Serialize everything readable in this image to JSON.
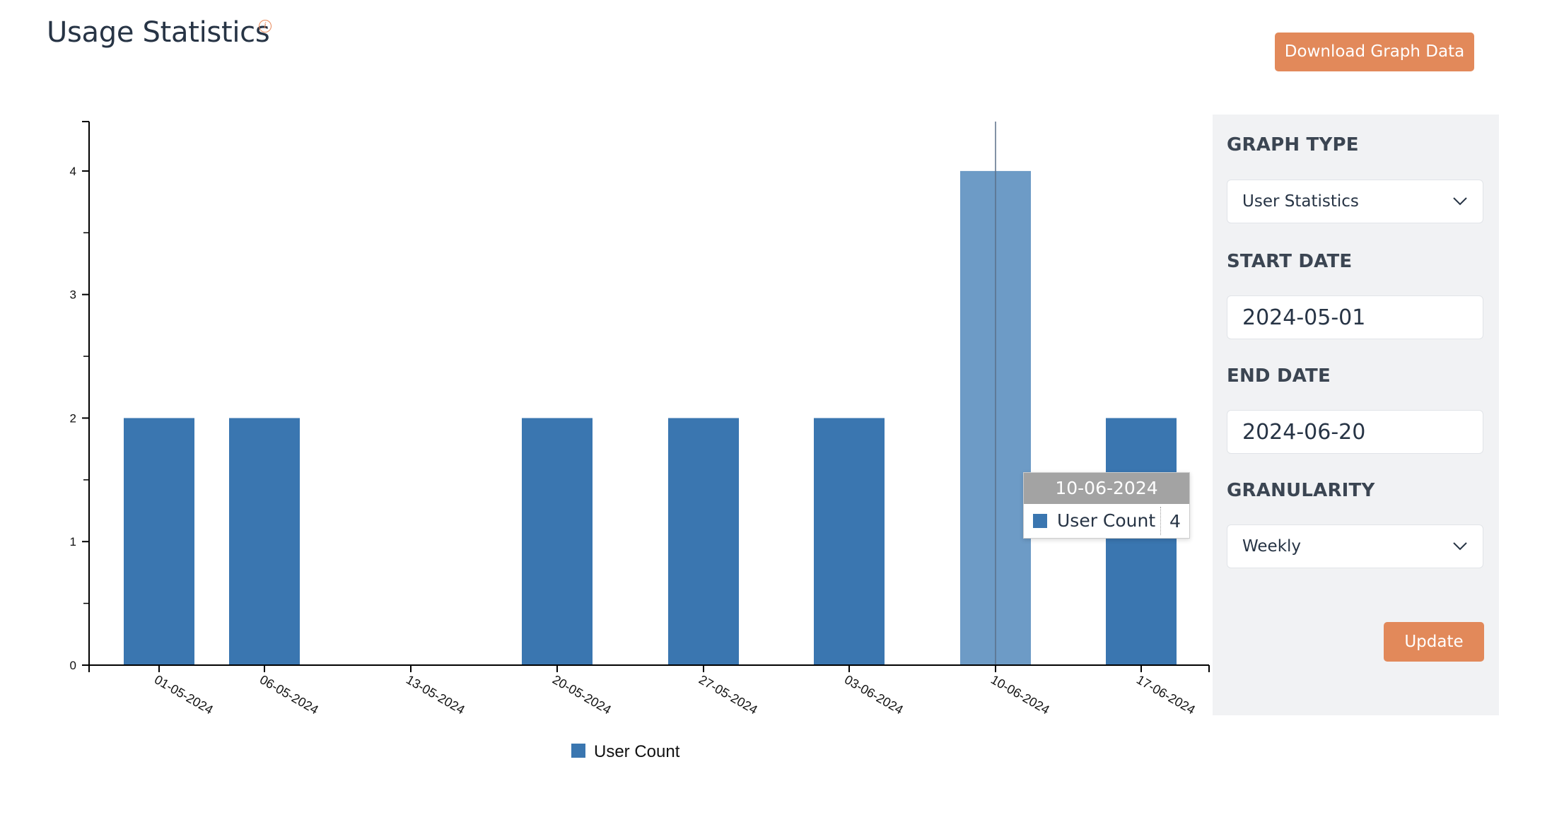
{
  "header": {
    "title": "Usage Statistics",
    "info_icon": "info-circle-icon",
    "download_label": "Download Graph Data"
  },
  "colors": {
    "accent": "#e2895a",
    "bar": "#3a76b0",
    "bar_hover": "#6d9bc6",
    "panel_bg": "#f1f2f4"
  },
  "chart_data": {
    "type": "bar",
    "categories": [
      "01-05-2024",
      "06-05-2024",
      "13-05-2024",
      "20-05-2024",
      "27-05-2024",
      "03-06-2024",
      "10-06-2024",
      "17-06-2024"
    ],
    "series": [
      {
        "name": "User Count",
        "values": [
          2,
          2,
          0,
          2,
          2,
          2,
          4,
          2
        ]
      }
    ],
    "ylim": [
      0,
      4.4
    ],
    "yticks": [
      0,
      1,
      2,
      3,
      4
    ],
    "xlabel": "",
    "ylabel": "",
    "grid": false,
    "legend": "bottom-center",
    "highlighted_category": "10-06-2024"
  },
  "tooltip": {
    "date": "10-06-2024",
    "series_name": "User Count",
    "value": "4"
  },
  "panel": {
    "graph_type_label": "GRAPH TYPE",
    "graph_type_value": "User Statistics",
    "start_date_label": "START DATE",
    "start_date_value": "2024-05-01",
    "end_date_label": "END DATE",
    "end_date_value": "2024-06-20",
    "granularity_label": "GRANULARITY",
    "granularity_value": "Weekly",
    "update_label": "Update"
  }
}
